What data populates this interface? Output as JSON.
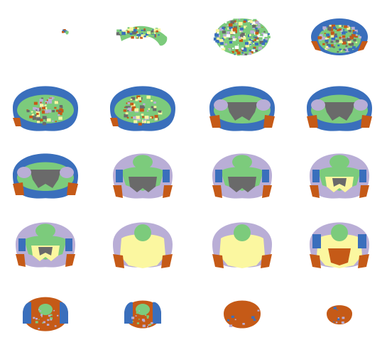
{
  "figure": {
    "kind": "brain-atlas-coronal-montage",
    "rows": 5,
    "cols": 4,
    "background": "#ffffff"
  },
  "colors": {
    "blue": "#3a6fbc",
    "green": "#7ccb7c",
    "lavender": "#b9aed6",
    "yellow": "#fbf7a0",
    "orange": "#c55a17",
    "gray": "#6a6a6a",
    "noise": "#8b8b8b"
  },
  "slices": [
    {
      "id": 1,
      "stage": 0.0
    },
    {
      "id": 2,
      "stage": 0.05
    },
    {
      "id": 3,
      "stage": 0.12
    },
    {
      "id": 4,
      "stage": 0.18
    },
    {
      "id": 5,
      "stage": 0.24
    },
    {
      "id": 6,
      "stage": 0.3
    },
    {
      "id": 7,
      "stage": 0.36
    },
    {
      "id": 8,
      "stage": 0.42
    },
    {
      "id": 9,
      "stage": 0.48
    },
    {
      "id": 10,
      "stage": 0.53
    },
    {
      "id": 11,
      "stage": 0.58
    },
    {
      "id": 12,
      "stage": 0.63
    },
    {
      "id": 13,
      "stage": 0.68
    },
    {
      "id": 14,
      "stage": 0.73
    },
    {
      "id": 15,
      "stage": 0.78
    },
    {
      "id": 16,
      "stage": 0.83
    },
    {
      "id": 17,
      "stage": 0.88
    },
    {
      "id": 18,
      "stage": 0.92
    },
    {
      "id": 19,
      "stage": 0.96
    },
    {
      "id": 20,
      "stage": 1.0
    }
  ]
}
